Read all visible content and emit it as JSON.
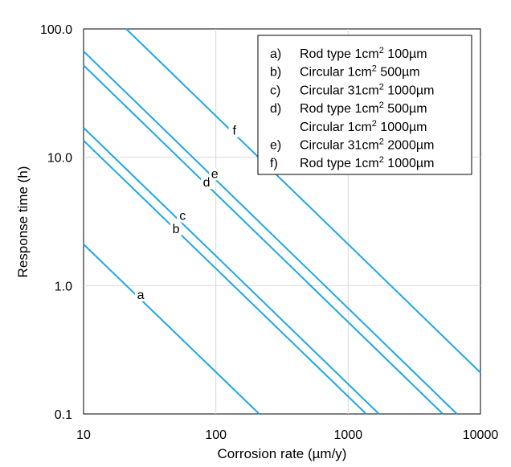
{
  "chart_data": {
    "type": "line",
    "title": "",
    "xlabel": "Corrosion rate (µm/y)",
    "ylabel": "Response time (h)",
    "x_scale": "log",
    "y_scale": "log",
    "xlim": [
      10,
      10000
    ],
    "ylim": [
      0.1,
      100
    ],
    "x_ticks": [
      "10",
      "100",
      "1000",
      "10000"
    ],
    "y_ticks": [
      "0.1",
      "1.0",
      "10.0",
      "100.0"
    ],
    "grid": true,
    "legend_position": "top-right",
    "line_color": "#1ea7e6",
    "legend": [
      {
        "key": "a)",
        "text": "Rod type 1cm",
        "sup": "2",
        "tail": " 100µm"
      },
      {
        "key": "b)",
        "text": "Circular 1cm",
        "sup": "2",
        "tail": " 500µm"
      },
      {
        "key": "c)",
        "text": "Circular 31cm",
        "sup": "2",
        "tail": " 1000µm"
      },
      {
        "key": "d)",
        "text": "Rod type 1cm",
        "sup": "2",
        "tail": " 500µm"
      },
      {
        "key": "",
        "text": "Circular 1cm",
        "sup": "2",
        "tail": " 1000µm"
      },
      {
        "key": "e)",
        "text": "Circular 31cm",
        "sup": "2",
        "tail": " 2000µm"
      },
      {
        "key": "f)",
        "text": "Rod type 1cm",
        "sup": "2",
        "tail": " 1000µm"
      }
    ],
    "series": [
      {
        "label": "a",
        "x": [
          10,
          213
        ],
        "y": [
          2.1,
          0.1
        ],
        "label_at": [
          27,
          0.8
        ]
      },
      {
        "label": "b",
        "x": [
          10,
          1370
        ],
        "y": [
          13.5,
          0.1
        ],
        "label_at": [
          50,
          2.6
        ]
      },
      {
        "label": "c",
        "x": [
          10,
          1710
        ],
        "y": [
          17,
          0.1
        ],
        "label_at": [
          56,
          3.3
        ]
      },
      {
        "label": "d",
        "x": [
          10,
          5200
        ],
        "y": [
          52,
          0.1
        ],
        "label_at": [
          85,
          6.0
        ]
      },
      {
        "label": "e",
        "x": [
          10,
          6640
        ],
        "y": [
          67,
          0.1
        ],
        "label_at": [
          98,
          7.0
        ]
      },
      {
        "label": "f",
        "x": [
          21,
          10000
        ],
        "y": [
          100,
          0.21
        ],
        "label_at": [
          138,
          15.2
        ]
      }
    ]
  }
}
